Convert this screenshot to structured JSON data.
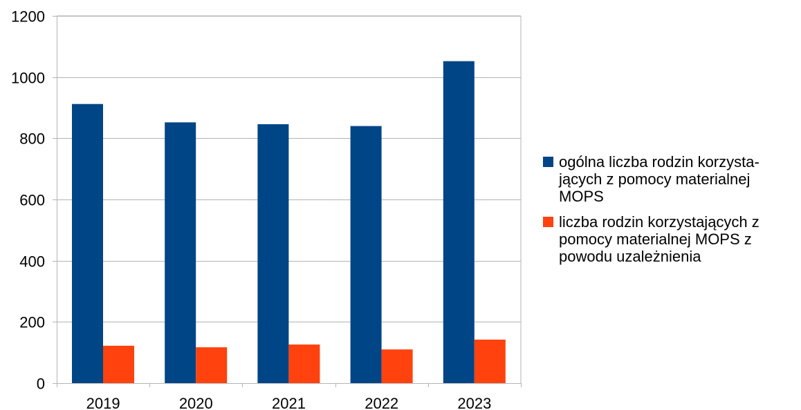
{
  "chart_data": {
    "type": "bar",
    "title": "",
    "xlabel": "",
    "ylabel": "",
    "categories": [
      "2019",
      "2020",
      "2021",
      "2022",
      "2023"
    ],
    "series": [
      {
        "name": "ogólna liczba rodzin korzysta-\njących z pomocy materialnej\nMOPS",
        "color": "#004586",
        "values": [
          912,
          852,
          846,
          840,
          1052
        ]
      },
      {
        "name": "liczba rodzin korzystających z\npomocy materialnej MOPS z\npowodu uzależnienia",
        "color": "#ff420e",
        "values": [
          122,
          117,
          126,
          110,
          142
        ]
      }
    ],
    "ylim": [
      0,
      1200
    ],
    "yticks": [
      0,
      200,
      400,
      600,
      800,
      1000,
      1200
    ],
    "grid": true,
    "legend_position": "right"
  }
}
